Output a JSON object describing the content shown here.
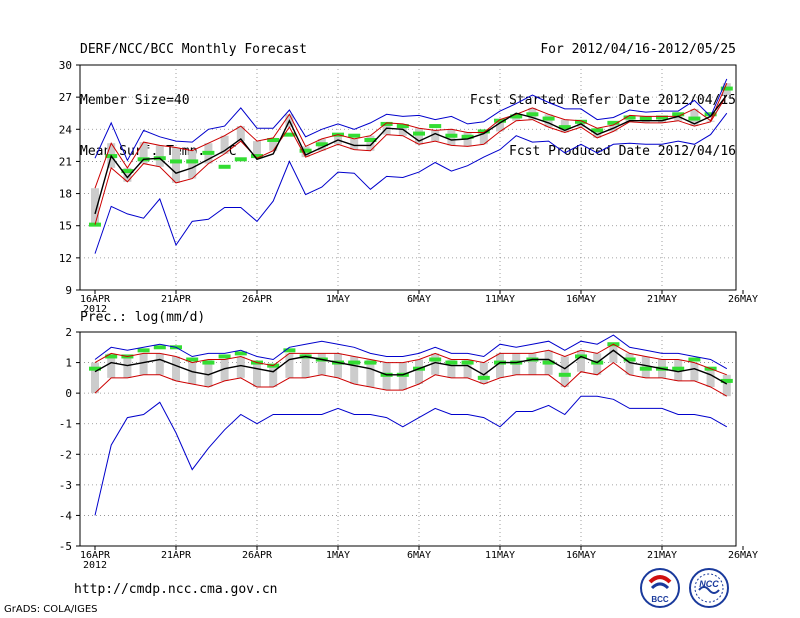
{
  "header": {
    "title": "DERF/NCC/BCC Monthly Forecast",
    "member_size": "Member Size=40",
    "variable": "Mean Surf. Temp.: °C",
    "period": "For 2012/04/16-2012/05/25",
    "started": "Fcst Started Refer Date 2012/04/15",
    "produced": "Fcst Produced Date 2012/04/16"
  },
  "prec_label": "Prec.: log(mm/d)",
  "url": "http://cmdp.ncc.cma.gov.cn",
  "credit": "GrADS: COLA/IGES",
  "logos": {
    "left": "BCC",
    "right": "NCC"
  },
  "colors": {
    "max_min": "#0000cc",
    "pct": "#cc0000",
    "mean": "#000000",
    "box": "#cccccc",
    "median": "#33dd33",
    "grid": "#888888"
  },
  "x_ticks": [
    "16APR",
    "21APR",
    "26APR",
    "1MAY",
    "6MAY",
    "11MAY",
    "16MAY",
    "21MAY",
    "26MAY"
  ],
  "x_year": "2012",
  "chart_data": [
    {
      "type": "line",
      "title": "Mean Surf. Temp.: °C",
      "x": [
        "4/16",
        "4/17",
        "4/18",
        "4/19",
        "4/20",
        "4/21",
        "4/22",
        "4/23",
        "4/24",
        "4/25",
        "4/26",
        "4/27",
        "4/28",
        "4/29",
        "4/30",
        "5/1",
        "5/2",
        "5/3",
        "5/4",
        "5/5",
        "5/6",
        "5/7",
        "5/8",
        "5/9",
        "5/10",
        "5/11",
        "5/12",
        "5/13",
        "5/14",
        "5/15",
        "5/16",
        "5/17",
        "5/18",
        "5/19",
        "5/20",
        "5/21",
        "5/22",
        "5/23",
        "5/24",
        "5/25"
      ],
      "ylim": [
        9,
        30
      ],
      "yticks": [
        9,
        12,
        15,
        18,
        21,
        24,
        27,
        30
      ],
      "series": [
        {
          "name": "max",
          "values": [
            21.3,
            24.6,
            21.1,
            23.9,
            23.3,
            22.9,
            22.8,
            24.0,
            24.3,
            26.0,
            24.1,
            24.1,
            25.8,
            23.3,
            24.0,
            24.5,
            24.0,
            24.6,
            25.4,
            25.2,
            25.3,
            24.9,
            25.2,
            24.5,
            24.7,
            25.7,
            26.4,
            27.2,
            26.5,
            25.9,
            25.9,
            24.9,
            25.1,
            25.8,
            25.6,
            25.7,
            25.7,
            26.7,
            25.2,
            28.7
          ]
        },
        {
          "name": "p90",
          "values": [
            18.5,
            22.7,
            20.4,
            22.8,
            22.5,
            22.3,
            22.0,
            22.7,
            23.4,
            24.3,
            22.9,
            23.2,
            25.4,
            22.4,
            23.1,
            23.5,
            23.1,
            23.4,
            24.6,
            24.5,
            24.1,
            23.9,
            24.0,
            23.7,
            23.7,
            24.9,
            25.4,
            26.0,
            25.4,
            24.9,
            24.8,
            24.1,
            24.4,
            25.3,
            25.2,
            25.2,
            25.2,
            25.9,
            24.8,
            28.3
          ]
        },
        {
          "name": "mean",
          "values": [
            16.1,
            21.5,
            19.5,
            21.2,
            21.3,
            19.9,
            20.4,
            21.2,
            22.0,
            23.1,
            21.2,
            21.7,
            24.8,
            21.6,
            22.3,
            23.0,
            22.5,
            22.5,
            24.1,
            24.0,
            22.9,
            23.6,
            23.0,
            23.1,
            23.6,
            24.6,
            25.5,
            25.1,
            24.6,
            23.9,
            24.5,
            23.5,
            24.1,
            24.8,
            24.8,
            24.8,
            25.2,
            24.5,
            25.2,
            27.2
          ]
        },
        {
          "name": "p10",
          "values": [
            15.1,
            20.4,
            19.1,
            20.8,
            20.5,
            19.0,
            19.4,
            20.8,
            21.7,
            22.9,
            21.3,
            22.0,
            24.2,
            21.4,
            22.0,
            22.6,
            22.1,
            22.0,
            23.5,
            23.4,
            22.6,
            22.9,
            22.5,
            22.4,
            22.6,
            23.8,
            24.8,
            24.9,
            24.2,
            23.7,
            24.2,
            23.2,
            23.8,
            24.7,
            24.6,
            24.6,
            24.8,
            24.3,
            24.7,
            27.2
          ]
        },
        {
          "name": "min",
          "values": [
            12.4,
            16.8,
            16.1,
            15.7,
            17.5,
            13.2,
            15.4,
            15.6,
            16.7,
            16.7,
            15.4,
            17.3,
            21.0,
            17.9,
            18.6,
            20.0,
            19.9,
            18.4,
            19.6,
            19.5,
            20.0,
            20.9,
            20.1,
            20.6,
            21.4,
            22.1,
            23.4,
            22.8,
            22.9,
            21.8,
            22.6,
            21.8,
            22.6,
            22.7,
            22.6,
            22.6,
            22.9,
            22.6,
            23.5,
            25.5
          ]
        },
        {
          "name": "median",
          "values": [
            15.1,
            21.5,
            20.1,
            21.2,
            21.3,
            21.0,
            21.0,
            21.8,
            20.5,
            21.2,
            21.5,
            23.0,
            23.5,
            22.0,
            22.6,
            23.5,
            23.4,
            23.0,
            24.5,
            24.3,
            23.6,
            24.3,
            23.4,
            23.3,
            23.8,
            24.8,
            25.2,
            25.4,
            25.0,
            24.2,
            24.7,
            23.9,
            24.6,
            25.1,
            25.0,
            25.1,
            25.4,
            25.0,
            25.4,
            27.8
          ]
        }
      ]
    },
    {
      "type": "line",
      "title": "Prec.: log(mm/d)",
      "x": [
        "4/16",
        "4/17",
        "4/18",
        "4/19",
        "4/20",
        "4/21",
        "4/22",
        "4/23",
        "4/24",
        "4/25",
        "4/26",
        "4/27",
        "4/28",
        "4/29",
        "4/30",
        "5/1",
        "5/2",
        "5/3",
        "5/4",
        "5/5",
        "5/6",
        "5/7",
        "5/8",
        "5/9",
        "5/10",
        "5/11",
        "5/12",
        "5/13",
        "5/14",
        "5/15",
        "5/16",
        "5/17",
        "5/18",
        "5/19",
        "5/20",
        "5/21",
        "5/22",
        "5/23",
        "5/24",
        "5/25"
      ],
      "ylim": [
        -5,
        2
      ],
      "yticks": [
        -5,
        -4,
        -3,
        -2,
        -1,
        0,
        1,
        2
      ],
      "series": [
        {
          "name": "max",
          "values": [
            1.1,
            1.5,
            1.4,
            1.5,
            1.6,
            1.5,
            1.2,
            1.3,
            1.3,
            1.4,
            1.2,
            1.1,
            1.5,
            1.6,
            1.7,
            1.6,
            1.5,
            1.3,
            1.2,
            1.2,
            1.3,
            1.5,
            1.3,
            1.3,
            1.2,
            1.6,
            1.5,
            1.6,
            1.7,
            1.4,
            1.7,
            1.6,
            1.9,
            1.5,
            1.4,
            1.3,
            1.3,
            1.2,
            1.1,
            0.8
          ]
        },
        {
          "name": "p90",
          "values": [
            1.0,
            1.3,
            1.2,
            1.3,
            1.3,
            1.2,
            1.0,
            1.1,
            1.1,
            1.2,
            1.0,
            0.9,
            1.3,
            1.3,
            1.3,
            1.3,
            1.2,
            1.1,
            1.0,
            1.0,
            1.1,
            1.3,
            1.1,
            1.1,
            1.0,
            1.3,
            1.3,
            1.3,
            1.4,
            1.2,
            1.4,
            1.3,
            1.6,
            1.3,
            1.2,
            1.1,
            1.1,
            1.0,
            0.8,
            0.6
          ]
        },
        {
          "name": "mean",
          "values": [
            0.7,
            1.0,
            0.9,
            1.0,
            1.1,
            0.9,
            0.7,
            0.6,
            0.8,
            0.9,
            0.8,
            0.7,
            1.1,
            1.2,
            1.1,
            1.0,
            0.9,
            0.8,
            0.6,
            0.6,
            0.8,
            1.0,
            0.9,
            0.9,
            0.6,
            1.0,
            1.0,
            1.1,
            1.1,
            0.8,
            1.2,
            1.0,
            1.4,
            1.0,
            0.9,
            0.8,
            0.7,
            0.8,
            0.6,
            0.3
          ]
        },
        {
          "name": "p10",
          "values": [
            0.0,
            0.5,
            0.5,
            0.6,
            0.6,
            0.4,
            0.3,
            0.2,
            0.4,
            0.5,
            0.2,
            0.2,
            0.5,
            0.5,
            0.6,
            0.5,
            0.3,
            0.2,
            0.1,
            0.1,
            0.3,
            0.6,
            0.5,
            0.5,
            0.3,
            0.5,
            0.6,
            0.6,
            0.6,
            0.2,
            0.7,
            0.6,
            1.0,
            0.6,
            0.5,
            0.5,
            0.4,
            0.4,
            0.2,
            -0.1
          ]
        },
        {
          "name": "min",
          "values": [
            -4.0,
            -1.7,
            -0.8,
            -0.7,
            -0.3,
            -1.3,
            -2.5,
            -1.8,
            -1.2,
            -0.7,
            -1.0,
            -0.7,
            -0.7,
            -0.7,
            -0.7,
            -0.5,
            -0.7,
            -0.7,
            -0.8,
            -1.1,
            -0.8,
            -0.5,
            -0.7,
            -0.7,
            -0.8,
            -1.1,
            -0.6,
            -0.6,
            -0.4,
            -0.7,
            -0.1,
            -0.1,
            -0.2,
            -0.5,
            -0.5,
            -0.5,
            -0.7,
            -0.7,
            -0.8,
            -1.1
          ]
        },
        {
          "name": "median",
          "values": [
            0.8,
            1.2,
            1.2,
            1.4,
            1.5,
            1.5,
            1.1,
            1.0,
            1.2,
            1.3,
            1.0,
            0.9,
            1.4,
            1.2,
            1.1,
            1.0,
            1.0,
            1.0,
            0.6,
            0.6,
            0.8,
            1.1,
            1.0,
            1.0,
            0.5,
            1.0,
            1.0,
            1.1,
            1.0,
            0.6,
            1.2,
            1.0,
            1.6,
            1.1,
            0.8,
            0.8,
            0.8,
            1.1,
            0.8,
            0.4
          ]
        }
      ]
    }
  ]
}
